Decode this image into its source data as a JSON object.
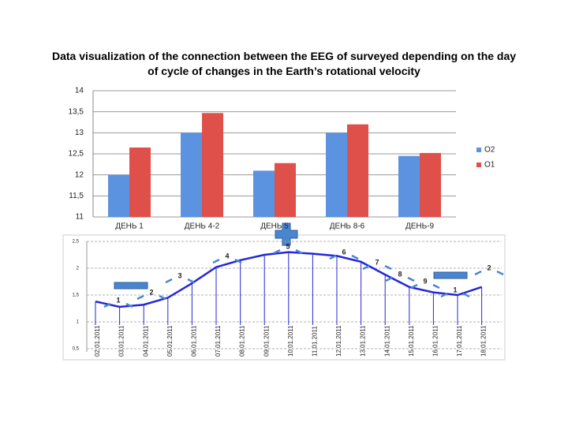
{
  "chart_data": [
    {
      "type": "bar",
      "title": "Data visualization of the connection between the EEG of surveyed depending on the day of cycle of changes in the Earth’s rotational velocity",
      "categories": [
        "ДЕНЬ 1",
        "ДЕНЬ 4-2",
        "ДЕНЬ 5",
        "ДЕНЬ 8-6",
        "ДЕНЬ-9"
      ],
      "series": [
        {
          "name": "O2",
          "color": "#5b93e0",
          "values": [
            12,
            13,
            12.1,
            13,
            12.45
          ]
        },
        {
          "name": "O1",
          "color": "#e0504a",
          "values": [
            12.65,
            13.47,
            12.28,
            13.2,
            12.52
          ]
        }
      ],
      "ylim": [
        11,
        14
      ],
      "yticks": [
        11,
        {
          "value": 11.5,
          "label": "11,5"
        },
        12,
        {
          "value": 12.5,
          "label": "12,5"
        },
        13,
        {
          "value": 13.5,
          "label": "13,5"
        },
        14
      ],
      "grid": true,
      "legend": "right"
    },
    {
      "type": "line",
      "x": [
        "02.01.2011",
        "03.01.2011",
        "04.01.2011",
        "05.01.2011",
        "06.01.2011",
        "07.01.2011",
        "08.01.2011",
        "09.01.2011",
        "10.01.2011",
        "11.01.2011",
        "12.01.2011",
        "13.01.2011",
        "14.01.2011",
        "15.01.2011",
        "16.01.2011",
        "17.01.2011",
        "18.01.2011"
      ],
      "values": [
        1.38,
        1.28,
        1.32,
        1.45,
        1.72,
        2.02,
        2.15,
        2.25,
        2.3,
        2.27,
        2.23,
        2.12,
        1.88,
        1.65,
        1.55,
        1.5,
        1.65
      ],
      "color": "#2626d8",
      "ylim": [
        0.5,
        2.5
      ],
      "yticks": [
        {
          "value": 0.5,
          "label": "0,5"
        },
        1,
        {
          "value": 1.5,
          "label": "1,5"
        },
        2,
        {
          "value": 2.5,
          "label": "2,5"
        }
      ],
      "grid": true,
      "annotations": [
        "1",
        "2",
        "3",
        "4",
        "5",
        "6",
        "7",
        "8",
        "9",
        "1",
        "2"
      ]
    }
  ]
}
